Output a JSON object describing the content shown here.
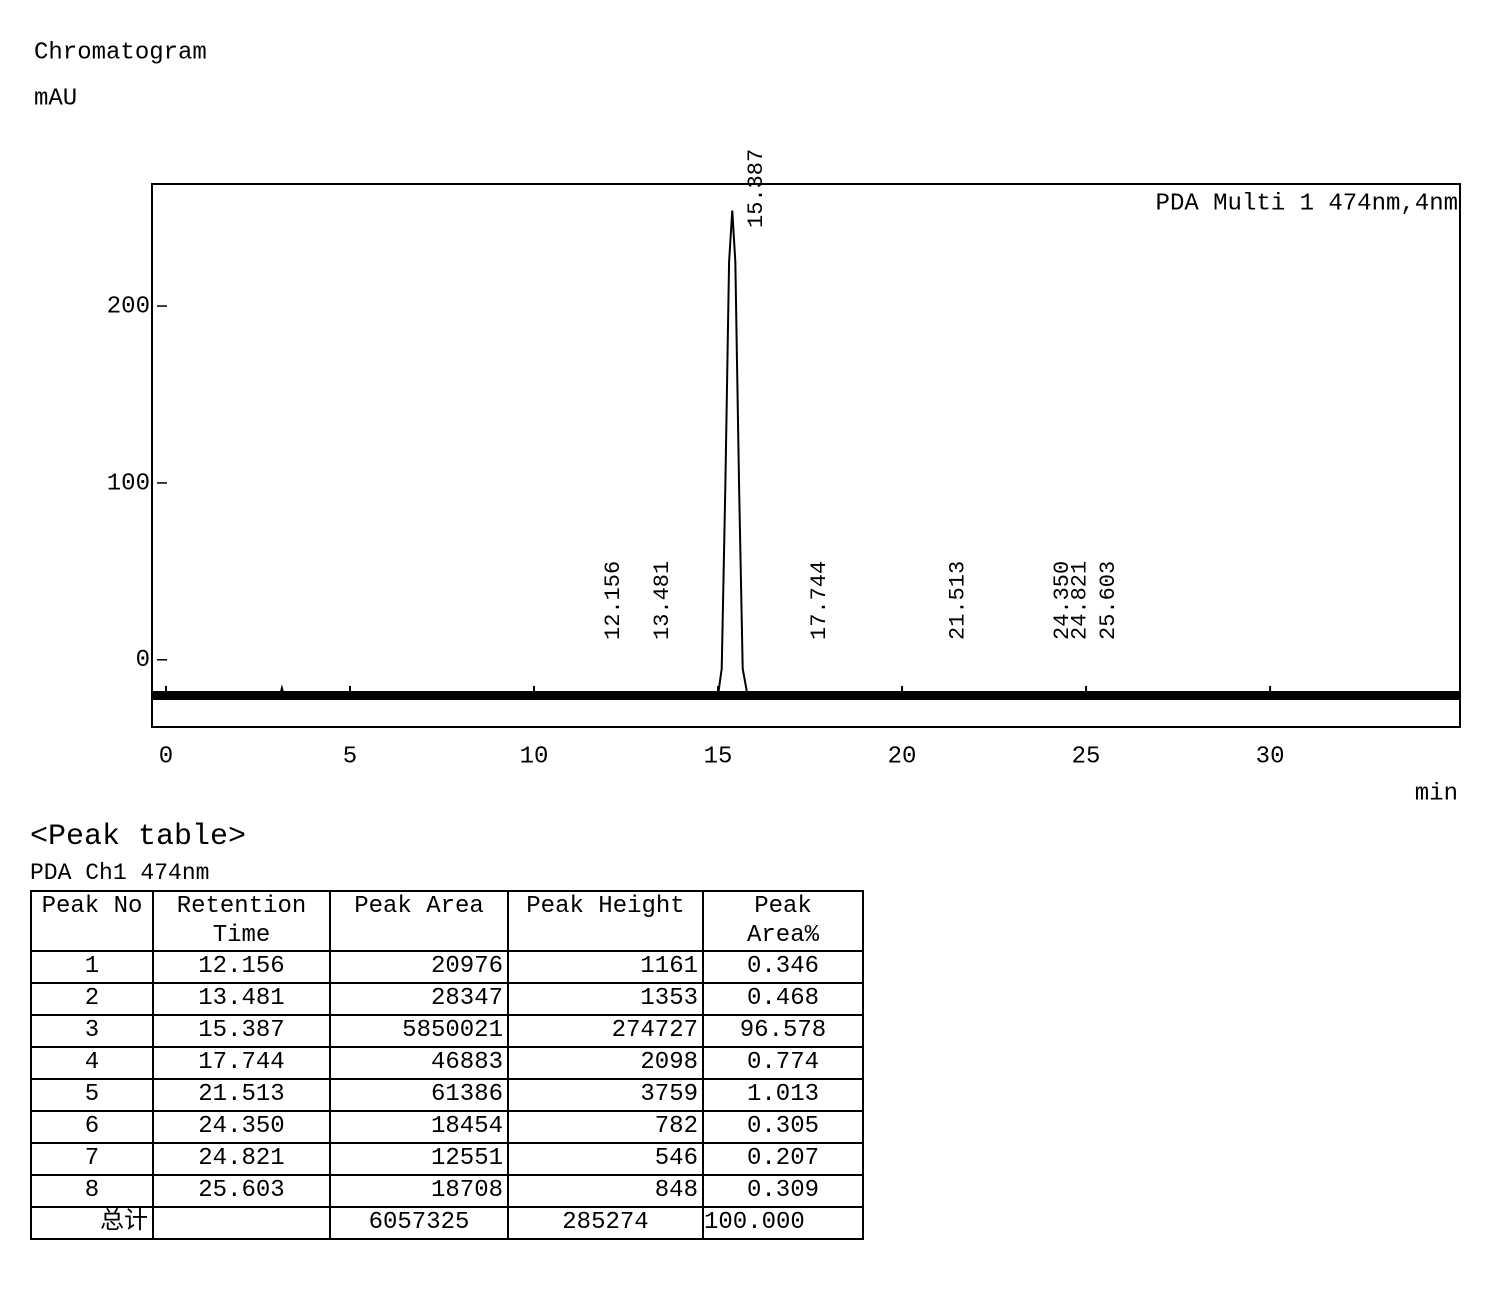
{
  "chart_data": {
    "type": "line",
    "title": "Chromatogram",
    "y_label": "mAU",
    "x_label": "min",
    "series": [
      {
        "name": "PDA Multi 1 474nm,4nm",
        "color": "#000000",
        "x": [
          -0.38,
          3.1,
          3.15,
          3.2,
          15.0,
          15.1,
          15.2,
          15.3,
          15.387,
          15.47,
          15.57,
          15.67,
          15.8,
          35.16
        ],
        "values": [
          -20,
          -20,
          -16,
          -20,
          -20,
          -5,
          100,
          225,
          254,
          225,
          100,
          -5,
          -20,
          -20
        ]
      }
    ],
    "peak_labels": [
      {
        "value": 12.156,
        "label": "12.156"
      },
      {
        "value": 13.481,
        "label": "13.481"
      },
      {
        "value": 15.387,
        "label": "15.387"
      },
      {
        "value": 17.744,
        "label": "17.744"
      },
      {
        "value": 21.513,
        "label": "21.513"
      },
      {
        "value": 24.35,
        "label": "24.350"
      },
      {
        "value": 24.821,
        "label": "24.821"
      },
      {
        "value": 25.603,
        "label": "25.603"
      }
    ],
    "xlim": [
      -0.38,
      35.16
    ],
    "ylim": [
      -38,
      269
    ],
    "xticks": [
      0,
      5,
      10,
      15,
      20,
      25,
      30
    ],
    "yticks": [
      0,
      100,
      200
    ]
  },
  "peak_table": {
    "title": "<Peak table>",
    "subtitle": "PDA Ch1 474nm",
    "header": [
      "Peak No",
      "Retention\nTime",
      "Peak Area",
      "Peak Height",
      "Peak\nArea%"
    ],
    "rows": [
      [
        "1",
        "12.156",
        "20976",
        "1161",
        "0.346"
      ],
      [
        "2",
        "13.481",
        "28347",
        "1353",
        "0.468"
      ],
      [
        "3",
        "15.387",
        "5850021",
        "274727",
        "96.578"
      ],
      [
        "4",
        "17.744",
        "46883",
        "2098",
        "0.774"
      ],
      [
        "5",
        "21.513",
        "61386",
        "3759",
        "1.013"
      ],
      [
        "6",
        "24.350",
        "18454",
        "782",
        "0.305"
      ],
      [
        "7",
        "24.821",
        "12551",
        "546",
        "0.207"
      ],
      [
        "8",
        "25.603",
        "18708",
        "848",
        "0.309"
      ]
    ],
    "total": {
      "label": "总计",
      "area": "6057325",
      "height": "285274",
      "percent": "100.000"
    }
  }
}
